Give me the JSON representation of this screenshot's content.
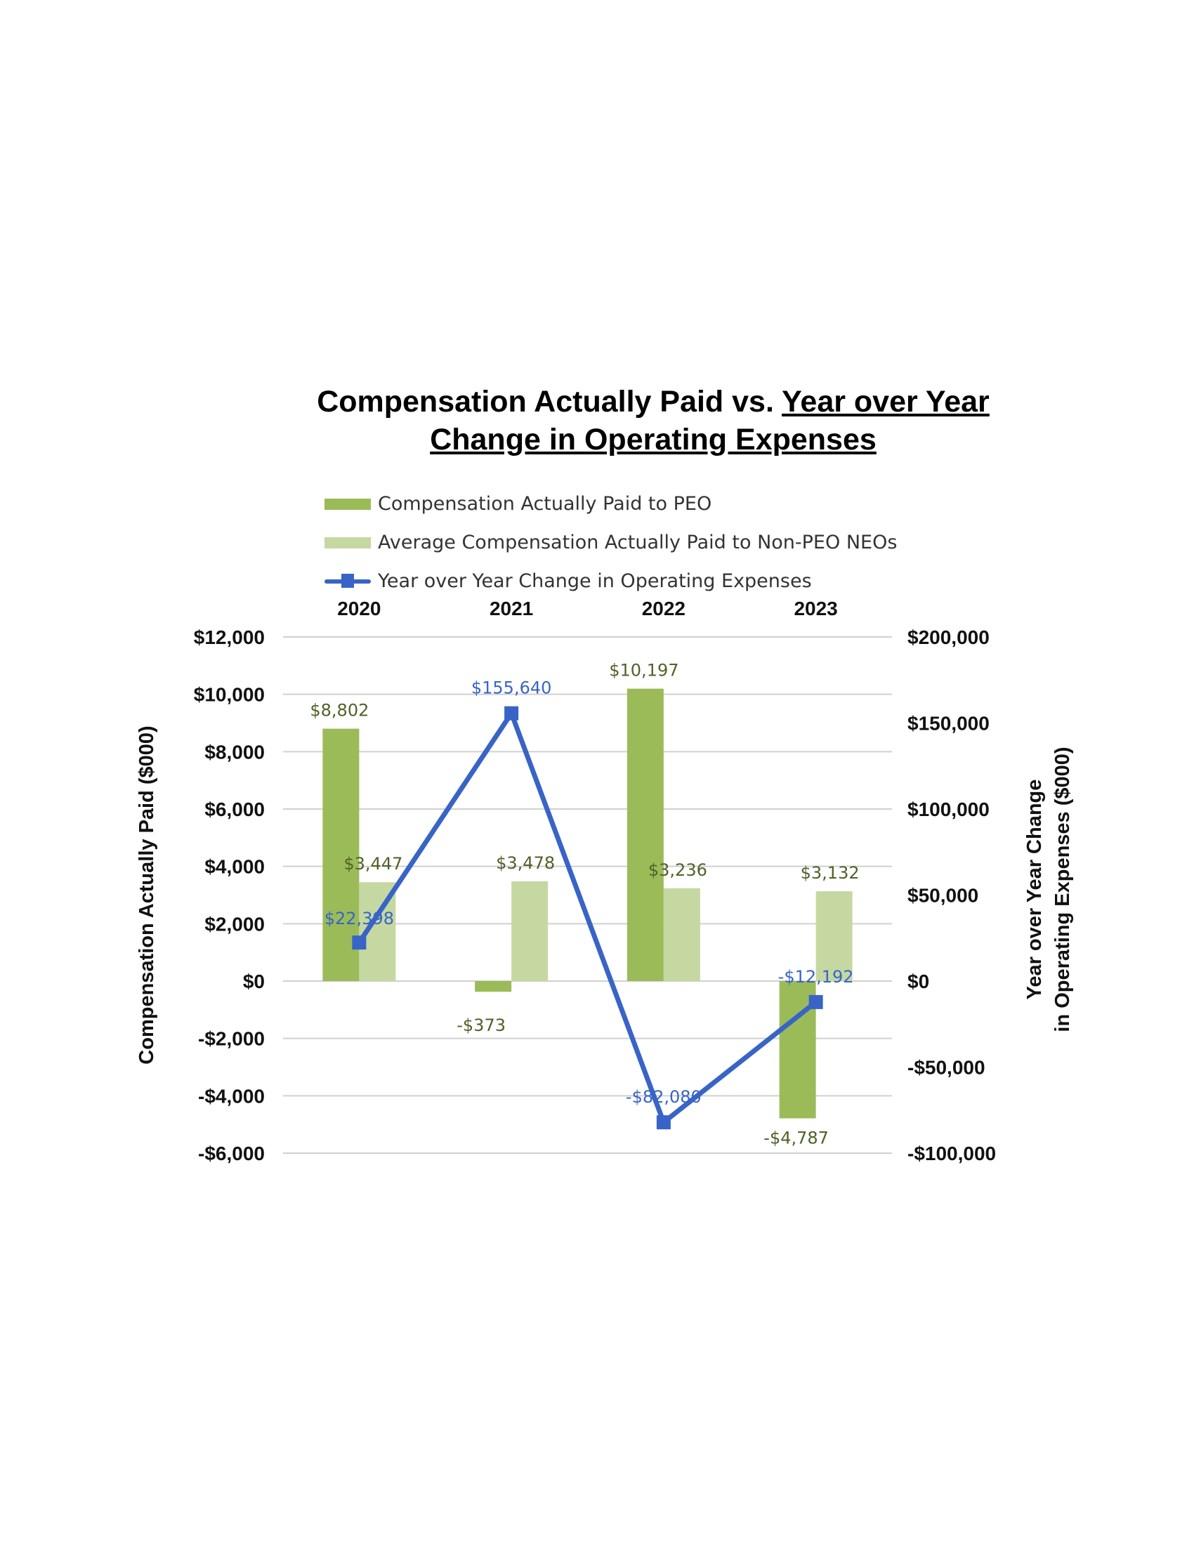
{
  "title": {
    "line1_plain": "Compensation Actually Paid vs. ",
    "line1_underlined": "Year over Year",
    "line2_underlined": "Change in Operating Expenses"
  },
  "legend": [
    "Compensation Actually Paid to PEO",
    "Average Compensation Actually Paid to Non-PEO NEOs",
    "Year over Year Change in Operating Expenses"
  ],
  "colors": {
    "peo": "#9BBB59",
    "neo": "#C5D8A2",
    "line": "#3864C7",
    "bar_label": "#4F6228",
    "line_label": "#3864C7",
    "grid": "#D0D0D0"
  },
  "chart_data": {
    "type": "bar",
    "title": "Compensation Actually Paid vs. Year over Year Change in Operating Expenses",
    "categories": [
      "2020",
      "2021",
      "2022",
      "2023"
    ],
    "ylabel_left": "Compensation Actually Paid ($000)",
    "ylabel_right_lines": [
      "Year over Year Change",
      "in Operating Expenses ($000)"
    ],
    "ylim_left": [
      -6000,
      12000
    ],
    "ylim_right": [
      -100000,
      200000
    ],
    "left_ticks": [
      {
        "value": 12000,
        "label": "$12,000"
      },
      {
        "value": 10000,
        "label": "$10,000"
      },
      {
        "value": 8000,
        "label": "$8,000"
      },
      {
        "value": 6000,
        "label": "$6,000"
      },
      {
        "value": 4000,
        "label": "$4,000"
      },
      {
        "value": 2000,
        "label": "$2,000"
      },
      {
        "value": 0,
        "label": "$0"
      },
      {
        "value": -2000,
        "label": "-$2,000"
      },
      {
        "value": -4000,
        "label": "-$4,000"
      },
      {
        "value": -6000,
        "label": "-$6,000"
      }
    ],
    "right_ticks": [
      {
        "value": 200000,
        "label": "$200,000"
      },
      {
        "value": 150000,
        "label": "$150,000"
      },
      {
        "value": 100000,
        "label": "$100,000"
      },
      {
        "value": 50000,
        "label": "$50,000"
      },
      {
        "value": 0,
        "label": "$0"
      },
      {
        "value": -50000,
        "label": "-$50,000"
      },
      {
        "value": -100000,
        "label": "-$100,000"
      }
    ],
    "grid": true,
    "legend_position": "top",
    "series": [
      {
        "name": "Compensation Actually Paid to PEO",
        "type": "bar",
        "axis": "left",
        "values": [
          8802,
          -373,
          10197,
          -4787
        ],
        "labels": [
          "$8,802",
          "-$373",
          "$10,197",
          "-$4,787"
        ]
      },
      {
        "name": "Average Compensation Actually Paid to Non-PEO NEOs",
        "type": "bar",
        "axis": "left",
        "values": [
          3447,
          3478,
          3236,
          3132
        ],
        "labels": [
          "$3,447",
          "$3,478",
          "$3,236",
          "$3,132"
        ]
      },
      {
        "name": "Year over Year Change in Operating Expenses",
        "type": "line",
        "axis": "right",
        "values": [
          22398,
          155640,
          -82080,
          -12192
        ],
        "labels": [
          "$22,398",
          "$155,640",
          "-$82,080",
          "-$12,192"
        ]
      }
    ]
  }
}
